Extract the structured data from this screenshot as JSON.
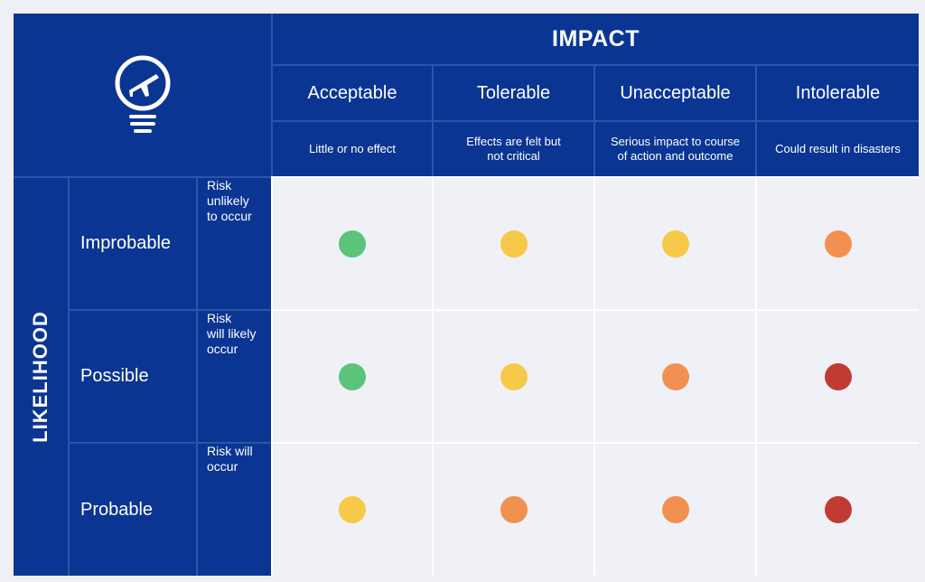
{
  "header": {
    "impact_label": "IMPACT",
    "likelihood_label": "LIKELIHOOD",
    "logo_icon": "lightbulb-airplane-icon"
  },
  "impact_levels": [
    {
      "label": "Acceptable",
      "desc_1": "Little or no effect",
      "desc_2": ""
    },
    {
      "label": "Tolerable",
      "desc_1": "Effects are felt but",
      "desc_2": "not critical"
    },
    {
      "label": "Unacceptable",
      "desc_1": "Serious impact to course",
      "desc_2": "of action and outcome"
    },
    {
      "label": "Intolerable",
      "desc_1": "Could result in disasters",
      "desc_2": ""
    }
  ],
  "likelihood_levels": [
    {
      "label": "Improbable",
      "desc_1": "Risk",
      "desc_2": "unlikely",
      "desc_3": "to occur"
    },
    {
      "label": "Possible",
      "desc_1": "Risk",
      "desc_2": "will likely",
      "desc_3": "occur"
    },
    {
      "label": "Probable",
      "desc_1": "Risk will",
      "desc_2": "occur",
      "desc_3": ""
    }
  ],
  "grid": [
    [
      "green",
      "yellow",
      "yellow",
      "orange"
    ],
    [
      "green",
      "yellow",
      "orange",
      "red"
    ],
    [
      "yellow",
      "orange",
      "orange",
      "red"
    ]
  ],
  "colors": {
    "navy": "#0a3592",
    "green": "#5bc47a",
    "yellow": "#f7c948",
    "orange": "#f2914f",
    "red": "#c23b33"
  }
}
